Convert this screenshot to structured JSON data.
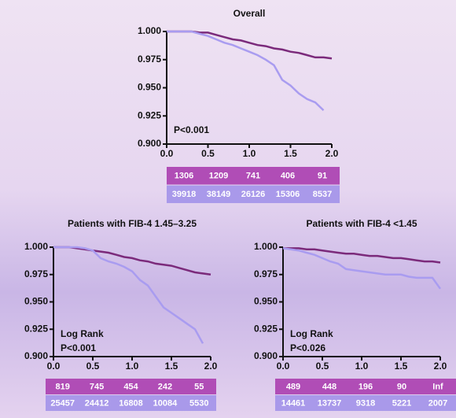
{
  "chart_data": [
    {
      "type": "line",
      "title": "Overall",
      "x": [
        0,
        0.1,
        0.2,
        0.3,
        0.4,
        0.5,
        0.6,
        0.7,
        0.8,
        0.9,
        1.0,
        1.1,
        1.2,
        1.3,
        1.4,
        1.5,
        1.6,
        1.7,
        1.8,
        1.9,
        2.0
      ],
      "series": [
        {
          "color": "#7b2a7b",
          "values": [
            1.0,
            1.0,
            1.0,
            1.0,
            0.999,
            0.999,
            0.997,
            0.995,
            0.993,
            0.992,
            0.99,
            0.988,
            0.987,
            0.985,
            0.984,
            0.982,
            0.981,
            0.979,
            0.977,
            0.977,
            0.976
          ]
        },
        {
          "color": "#a99cf0",
          "values": [
            1.0,
            1.0,
            1.0,
            1.0,
            0.998,
            0.996,
            0.993,
            0.99,
            0.988,
            0.985,
            0.982,
            0.979,
            0.975,
            0.97,
            0.957,
            0.952,
            0.945,
            0.94,
            0.937,
            0.93,
            null
          ]
        }
      ],
      "xlim": [
        0,
        2
      ],
      "ylim": [
        0.9,
        1.0
      ],
      "xticks": [
        {
          "value": 0,
          "label": "0.0"
        },
        0.5,
        {
          "value": 1,
          "label": "1.0"
        },
        1.5,
        {
          "value": 2,
          "label": "2.0"
        }
      ],
      "yticks": [
        {
          "value": 1.0,
          "label": "1.000"
        },
        {
          "value": 0.975,
          "label": "0.975"
        },
        {
          "value": 0.95,
          "label": "0.950"
        },
        {
          "value": 0.925,
          "label": "0.925"
        },
        {
          "value": 0.9,
          "label": "0.900"
        }
      ],
      "annotation": [
        "P<0.001"
      ],
      "risk_table": [
        [
          "1306",
          "1209",
          "741",
          "406",
          "91"
        ],
        [
          "39918",
          "38149",
          "26126",
          "15306",
          "8537"
        ]
      ]
    },
    {
      "type": "line",
      "title": "Patients with FIB-4 1.45–3.25",
      "x": [
        0,
        0.1,
        0.2,
        0.3,
        0.4,
        0.5,
        0.6,
        0.7,
        0.8,
        0.9,
        1.0,
        1.1,
        1.2,
        1.3,
        1.4,
        1.5,
        1.6,
        1.7,
        1.8,
        1.9,
        2.0
      ],
      "series": [
        {
          "color": "#7b2a7b",
          "values": [
            1.0,
            1.0,
            1.0,
            0.999,
            0.998,
            0.997,
            0.996,
            0.995,
            0.993,
            0.991,
            0.99,
            0.988,
            0.987,
            0.985,
            0.984,
            0.983,
            0.981,
            0.979,
            0.977,
            0.976,
            0.975
          ]
        },
        {
          "color": "#a99cf0",
          "values": [
            1.0,
            1.0,
            1.0,
            1.0,
            0.999,
            0.997,
            0.99,
            0.987,
            0.985,
            0.982,
            0.978,
            0.97,
            0.965,
            0.955,
            0.945,
            0.94,
            0.935,
            0.93,
            0.925,
            0.912,
            null
          ]
        }
      ],
      "xlim": [
        0,
        2
      ],
      "ylim": [
        0.9,
        1.0
      ],
      "xticks": [
        {
          "value": 0,
          "label": "0.0"
        },
        0.5,
        {
          "value": 1,
          "label": "1.0"
        },
        1.5,
        {
          "value": 2,
          "label": "2.0"
        }
      ],
      "yticks": [
        {
          "value": 1.0,
          "label": "1.000"
        },
        {
          "value": 0.975,
          "label": "0.975"
        },
        {
          "value": 0.95,
          "label": "0.950"
        },
        {
          "value": 0.925,
          "label": "0.925"
        },
        {
          "value": 0.9,
          "label": "0.900"
        }
      ],
      "annotation": [
        "Log Rank",
        "P<0.001"
      ],
      "risk_table": [
        [
          "819",
          "745",
          "454",
          "242",
          "55"
        ],
        [
          "25457",
          "24412",
          "16808",
          "10084",
          "5530"
        ]
      ]
    },
    {
      "type": "line",
      "title": "Patients with FIB-4 <1.45",
      "x": [
        0,
        0.1,
        0.2,
        0.3,
        0.4,
        0.5,
        0.6,
        0.7,
        0.8,
        0.9,
        1.0,
        1.1,
        1.2,
        1.3,
        1.4,
        1.5,
        1.6,
        1.7,
        1.8,
        1.9,
        2.0
      ],
      "series": [
        {
          "color": "#7b2a7b",
          "values": [
            0.999,
            0.999,
            0.999,
            0.998,
            0.998,
            0.997,
            0.996,
            0.995,
            0.994,
            0.994,
            0.993,
            0.992,
            0.992,
            0.991,
            0.99,
            0.99,
            0.989,
            0.988,
            0.987,
            0.987,
            0.986
          ]
        },
        {
          "color": "#a99cf0",
          "values": [
            0.999,
            0.998,
            0.997,
            0.995,
            0.993,
            0.99,
            0.987,
            0.985,
            0.98,
            0.979,
            0.978,
            0.977,
            0.976,
            0.975,
            0.975,
            0.975,
            0.973,
            0.972,
            0.972,
            0.972,
            0.962
          ]
        }
      ],
      "xlim": [
        0,
        2
      ],
      "ylim": [
        0.9,
        1.0
      ],
      "xticks": [
        {
          "value": 0,
          "label": "0.0"
        },
        0.5,
        {
          "value": 1,
          "label": "1.0"
        },
        1.5,
        {
          "value": 2,
          "label": "2.0"
        }
      ],
      "yticks": [
        {
          "value": 1.0,
          "label": "1.000"
        },
        {
          "value": 0.975,
          "label": "0.975"
        },
        {
          "value": 0.95,
          "label": "0.950"
        },
        {
          "value": 0.925,
          "label": "0.925"
        },
        {
          "value": 0.9,
          "label": "0.900"
        }
      ],
      "annotation": [
        "Log Rank",
        "P<0.026"
      ],
      "risk_table": [
        [
          "489",
          "448",
          "196",
          "90",
          "Inf"
        ],
        [
          "14461",
          "13737",
          "9318",
          "5221",
          "2007"
        ]
      ]
    }
  ]
}
